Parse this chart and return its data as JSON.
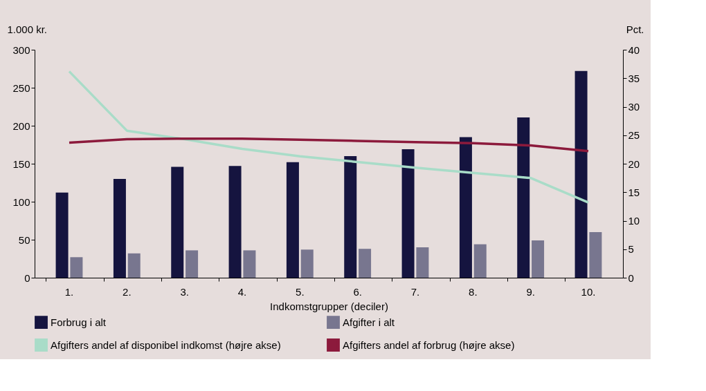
{
  "chart_data": {
    "type": "bar",
    "xlabel": "Indkomstgrupper (deciler)",
    "ylabel": "1.000 kr.",
    "y2label": "Pct.",
    "categories": [
      "1.",
      "2.",
      "3.",
      "4.",
      "5.",
      "6.",
      "7.",
      "8.",
      "9.",
      "10."
    ],
    "series": [
      {
        "name": "Forbrug i alt",
        "color": "#15143f",
        "values": [
          112,
          130,
          146,
          147,
          152,
          160,
          169,
          185,
          211,
          272
        ]
      },
      {
        "name": "Afgifter i alt",
        "color": "#78768f",
        "values": [
          27,
          32,
          36,
          36,
          37,
          38,
          40,
          44,
          49,
          60
        ]
      },
      {
        "name": "Afgifters andel af disponibel indkomst (højre akse)",
        "color": "#a9dcc8",
        "type": "line",
        "axis": "y2",
        "values": [
          36.2,
          25.8,
          24.3,
          22.6,
          21.3,
          20.3,
          19.3,
          18.4,
          17.5,
          13.2
        ]
      },
      {
        "name": "Afgifters andel af forbrug (højre akse)",
        "color": "#8c1a3c",
        "type": "line",
        "axis": "y2",
        "values": [
          23.7,
          24.3,
          24.4,
          24.4,
          24.2,
          24.0,
          23.8,
          23.6,
          23.2,
          22.2
        ]
      }
    ],
    "ylim": [
      0,
      300
    ],
    "yticks": [
      0,
      50,
      100,
      150,
      200,
      250,
      300
    ],
    "y2lim": [
      0,
      40
    ],
    "y2ticks": [
      0,
      5,
      10,
      15,
      20,
      25,
      30,
      35,
      40
    ],
    "grid": false,
    "legend": "bottom",
    "marker": "none",
    "line_style": "solid"
  }
}
